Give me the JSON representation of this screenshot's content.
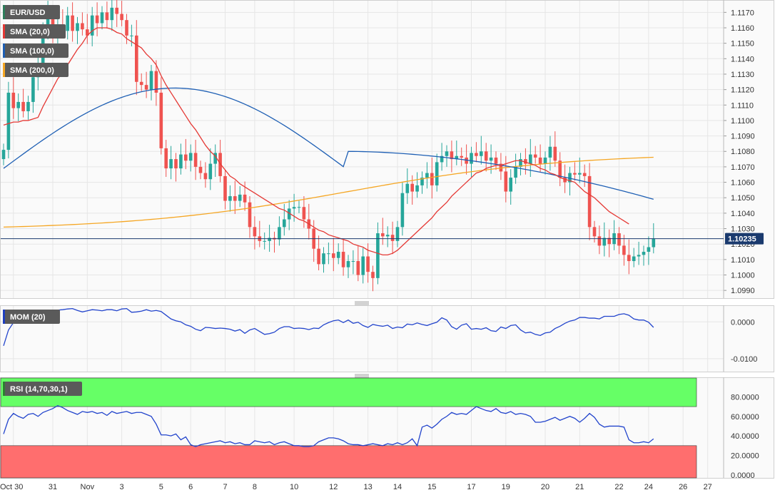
{
  "legend": {
    "main": [
      {
        "label": "EUR/USD",
        "color": "#2e7d5b"
      },
      {
        "label": "SMA (20,0)",
        "color": "#e53935"
      },
      {
        "label": "SMA (100,0)",
        "color": "#1e5fb4"
      },
      {
        "label": "SMA (200,0)",
        "color": "#f5a623"
      }
    ],
    "mom": {
      "label": "MOM (20)",
      "color": "#1f3fbf"
    },
    "rsi": {
      "label": "RSI (14,70,30,1)",
      "color": "#2e7d32"
    }
  },
  "colors": {
    "up": "#26a69a",
    "down": "#ef5350",
    "grid": "#e6e6e6",
    "price_line": "#1a3a6e",
    "rsi_overbought": "#66ff66",
    "rsi_oversold": "#ff6e6e",
    "indicator_line": "#2244cc"
  },
  "chart_data": [
    {
      "type": "candlestick",
      "symbol": "EUR/USD",
      "last_price_label": "1.10235",
      "last_price": 1.10235,
      "ylim": [
        1.0985,
        1.1178
      ],
      "y_ticks": [
        "1.1170",
        "1.1160",
        "1.1150",
        "1.1140",
        "1.1130",
        "1.1120",
        "1.1110",
        "1.1100",
        "1.1090",
        "1.1080",
        "1.1070",
        "1.1060",
        "1.1050",
        "1.1040",
        "1.1030",
        "1.1020",
        "1.1010",
        "1.1000",
        "1.0990"
      ],
      "x_ticks": [
        "Oct 30",
        "31",
        "Nov",
        "3",
        "5",
        "6",
        "7",
        "8",
        "10",
        "12",
        "13",
        "14",
        "15",
        "17",
        "19",
        "20",
        "21",
        "22",
        "24",
        "26",
        "27"
      ],
      "close": [
        1.1081,
        1.1118,
        1.1108,
        1.1112,
        1.1106,
        1.1112,
        1.1128,
        1.1137,
        1.1158,
        1.1169,
        1.1157,
        1.1162,
        1.1158,
        1.1168,
        1.1158,
        1.1163,
        1.1159,
        1.1155,
        1.1168,
        1.1163,
        1.117,
        1.1165,
        1.1173,
        1.1169,
        1.1165,
        1.1155,
        1.1155,
        1.1125,
        1.1123,
        1.112,
        1.1132,
        1.1118,
        1.1082,
        1.1069,
        1.1075,
        1.1069,
        1.1078,
        1.1074,
        1.1079,
        1.107,
        1.1066,
        1.1062,
        1.1072,
        1.1079,
        1.1064,
        1.1048,
        1.1051,
        1.1048,
        1.1052,
        1.1047,
        1.1031,
        1.1025,
        1.1022,
        1.1022,
        1.1024,
        1.1023,
        1.1031,
        1.1036,
        1.1043,
        1.1044,
        1.1044,
        1.1036,
        1.103,
        1.1017,
        1.1007,
        1.1014,
        1.1014,
        1.1011,
        1.1015,
        1.1005,
        1.1009,
        1.1009,
        1.1,
        1.1012,
        1.1002,
        1.0998,
        1.1027,
        1.1025,
        1.1026,
        1.1022,
        1.1031,
        1.1053,
        1.1059,
        1.1054,
        1.1058,
        1.1063,
        1.1066,
        1.1058,
        1.1073,
        1.1077,
        1.108,
        1.1075,
        1.1077,
        1.1076,
        1.1072,
        1.1079,
        1.1077,
        1.108,
        1.1074,
        1.1076,
        1.1072,
        1.1067,
        1.1054,
        1.1063,
        1.107,
        1.1075,
        1.1072,
        1.1078,
        1.1076,
        1.1072,
        1.1076,
        1.1083,
        1.1074,
        1.1063,
        1.106,
        1.1066,
        1.1065,
        1.1066,
        1.1064,
        1.1031,
        1.1025,
        1.1019,
        1.1024,
        1.102,
        1.1027,
        1.1019,
        1.1013,
        1.1009,
        1.1012,
        1.1013,
        1.1015,
        1.1018,
        1.10235
      ],
      "sma20": [
        1.1097,
        1.1098,
        1.1099,
        1.1099,
        1.11,
        1.11,
        1.1101,
        1.1102,
        1.1109,
        1.1115,
        1.1121,
        1.1127,
        1.1131,
        1.1136,
        1.1141,
        1.1146,
        1.115,
        1.1155,
        1.1158,
        1.116,
        1.116,
        1.116,
        1.1159,
        1.1157,
        1.1156,
        1.1153,
        1.1151,
        1.1149,
        1.1147,
        1.1143,
        1.114,
        1.1136,
        1.1129,
        1.1123,
        1.1118,
        1.1113,
        1.1108,
        1.1103,
        1.1098,
        1.1094,
        1.1089,
        1.1084,
        1.108,
        1.1077,
        1.1072,
        1.1068,
        1.1064,
        1.1062,
        1.1059,
        1.1057,
        1.1055,
        1.1053,
        1.1051,
        1.1049,
        1.1047,
        1.1045,
        1.1043,
        1.1042,
        1.104,
        1.1038,
        1.1036,
        1.1035,
        1.1033,
        1.1031,
        1.1029,
        1.1028,
        1.1026,
        1.1025,
        1.1024,
        1.1023,
        1.1022,
        1.102,
        1.1019,
        1.1018,
        1.1016,
        1.1015,
        1.1014,
        1.1013,
        1.1013,
        1.1014,
        1.1016,
        1.1019,
        1.1022,
        1.1025,
        1.1028,
        1.1031,
        1.1034,
        1.1037,
        1.1041,
        1.1044,
        1.1047,
        1.1051,
        1.1054,
        1.1057,
        1.106,
        1.1063,
        1.1066,
        1.1067,
        1.1069,
        1.107,
        1.1071,
        1.1071,
        1.1072,
        1.1073,
        1.1074,
        1.1074,
        1.1073,
        1.1072,
        1.1071,
        1.1069,
        1.1068,
        1.1066,
        1.1065,
        1.1063,
        1.1062,
        1.1061,
        1.106,
        1.1057,
        1.1054,
        1.1052,
        1.105,
        1.1047,
        1.1044,
        1.1041,
        1.1039,
        1.1037,
        1.1035,
        1.1033
      ]
    },
    {
      "type": "line",
      "name": "MOM (20)",
      "ylim": [
        -0.0135,
        0.0045
      ],
      "y_ticks": [
        "0.0000",
        "-0.0100"
      ],
      "values": [
        -0.0065,
        -0.0022,
        -0.0002,
        0.0002,
        -0.0002,
        0.0003,
        0.0004,
        -0.0001,
        0.0002,
        0.0005,
        0.0024,
        0.0032,
        0.0033,
        0.0035,
        0.0036,
        0.0031,
        0.0027,
        0.003,
        0.0033,
        0.0032,
        0.003,
        0.0033,
        0.0033,
        0.003,
        0.0035,
        0.0036,
        0.0026,
        0.0027,
        0.0029,
        0.0033,
        0.0029,
        0.0031,
        0.0028,
        0.0018,
        0.0008,
        0.0003,
        0.0,
        -0.0008,
        -0.0012,
        -0.002,
        -0.0024,
        -0.0015,
        -0.0016,
        -0.0018,
        -0.0017,
        -0.0018,
        -0.002,
        -0.0025,
        -0.0021,
        -0.0031,
        -0.0022,
        -0.0018,
        -0.0026,
        -0.0034,
        -0.0032,
        -0.0028,
        -0.0018,
        -0.0013,
        -0.0013,
        -0.0018,
        -0.0017,
        -0.0018,
        -0.0021,
        -0.0017,
        -0.0018,
        -0.0008,
        -0.0002,
        0.0003,
        0.0005,
        -0.0002,
        0.0005,
        -0.0004,
        -0.0001,
        -0.001,
        -0.0015,
        -0.0007,
        -0.001,
        -0.0012,
        -0.0009,
        -0.0018,
        -0.0014,
        -0.0016,
        -0.0006,
        -0.0008,
        -0.0003,
        -0.0007,
        -0.001,
        -0.0005,
        -0.0001,
        0.0011,
        0.0005,
        -0.0013,
        -0.002,
        -0.0009,
        -0.0005,
        -0.002,
        -0.0018,
        -0.002,
        -0.0016,
        -0.0024,
        -0.0026,
        -0.0014,
        -0.0018,
        -0.001,
        -0.0008,
        -0.0022,
        -0.003,
        -0.0028,
        -0.0034,
        -0.0037,
        -0.003,
        -0.0028,
        -0.0018,
        -0.0012,
        -0.0004,
        0.0002,
        0.0005,
        0.0012,
        0.0012,
        0.001,
        0.001,
        0.0008,
        0.0015,
        0.0015,
        0.0015,
        0.002,
        0.0022,
        0.0018,
        0.0008,
        0.0005,
        0.0005,
        -0.0001,
        -0.0015,
        -0.002,
        -0.0019,
        -0.0023,
        -0.002,
        -0.0023,
        -0.0019,
        -0.0021
      ]
    },
    {
      "type": "line",
      "name": "RSI (14,70,30,1)",
      "ylim": [
        -3,
        100
      ],
      "y_ticks": [
        "80.0000",
        "60.0000",
        "40.0000",
        "20.0000",
        "0.0000"
      ],
      "overbought": 70,
      "oversold": 30,
      "values": [
        42,
        57,
        63,
        60,
        58,
        62,
        63,
        60,
        64,
        66,
        68,
        71,
        69,
        66,
        64,
        62,
        65,
        64,
        65,
        63,
        64,
        61,
        65,
        63,
        64,
        65,
        63,
        64,
        64,
        62,
        60,
        52,
        41,
        41,
        40,
        42,
        36,
        39,
        31,
        29,
        31,
        32,
        33,
        34,
        35,
        33,
        34,
        32,
        33,
        31,
        31,
        35,
        34,
        33,
        34,
        31,
        33,
        34,
        32,
        30,
        30,
        29,
        29,
        30,
        34,
        36,
        38,
        38,
        37,
        35,
        32,
        31,
        31,
        30,
        31,
        32,
        31,
        30,
        32,
        31,
        33,
        31,
        33,
        37,
        30,
        49,
        51,
        48,
        52,
        57,
        60,
        64,
        62,
        63,
        62,
        66,
        70,
        68,
        66,
        65,
        68,
        64,
        63,
        65,
        62,
        63,
        62,
        60,
        54,
        54,
        55,
        57,
        59,
        56,
        58,
        60,
        58,
        54,
        58,
        63,
        59,
        52,
        49,
        50,
        50,
        50,
        49,
        36,
        33,
        33,
        34,
        33,
        37,
        34,
        33,
        32,
        33,
        37,
        37,
        38,
        42
      ]
    }
  ]
}
